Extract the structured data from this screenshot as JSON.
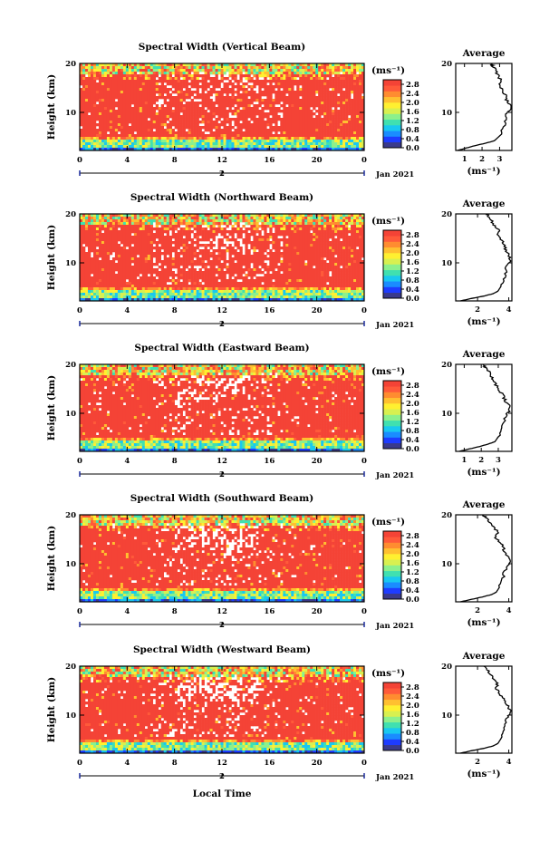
{
  "chart_data": {
    "type": "heatmap",
    "panels": [
      {
        "title": "Spectral Width (Vertical Beam)",
        "avg_xticks": [
          "1",
          "2",
          "3"
        ],
        "avg_xlim": [
          0.5,
          3.7
        ],
        "avg_profile": [
          [
            0.6,
            2
          ],
          [
            1.1,
            2.5
          ],
          [
            1.6,
            3
          ],
          [
            2.2,
            3.5
          ],
          [
            2.7,
            4
          ],
          [
            3.0,
            5
          ],
          [
            3.2,
            6.5
          ],
          [
            3.3,
            8
          ],
          [
            3.4,
            9.5
          ],
          [
            3.6,
            10.5
          ],
          [
            3.6,
            11.5
          ],
          [
            3.4,
            12.5
          ],
          [
            3.3,
            13.5
          ],
          [
            3.2,
            14.5
          ],
          [
            3.0,
            15.5
          ],
          [
            3.1,
            16.5
          ],
          [
            2.9,
            17.5
          ],
          [
            2.8,
            18.5
          ],
          [
            2.6,
            19.5
          ],
          [
            2.5,
            20
          ]
        ]
      },
      {
        "title": "Spectral Width (Northward Beam)",
        "avg_xticks": [
          "2",
          "4"
        ],
        "avg_xlim": [
          0.6,
          4.2
        ],
        "avg_profile": [
          [
            0.9,
            2
          ],
          [
            1.6,
            2.5
          ],
          [
            2.4,
            3
          ],
          [
            3.0,
            3.5
          ],
          [
            3.3,
            4
          ],
          [
            3.5,
            5
          ],
          [
            3.7,
            6.5
          ],
          [
            3.8,
            8
          ],
          [
            3.9,
            9.5
          ],
          [
            4.1,
            10.5
          ],
          [
            4.0,
            11.5
          ],
          [
            3.8,
            12.5
          ],
          [
            3.7,
            13.5
          ],
          [
            3.6,
            14.5
          ],
          [
            3.3,
            15.5
          ],
          [
            3.4,
            16.5
          ],
          [
            3.1,
            17.5
          ],
          [
            2.9,
            18.5
          ],
          [
            2.7,
            19.5
          ],
          [
            2.6,
            20
          ]
        ]
      },
      {
        "title": "Spectral Width (Eastward Beam)",
        "avg_xticks": [
          "1",
          "2",
          "3"
        ],
        "avg_xlim": [
          0.5,
          3.8
        ],
        "avg_profile": [
          [
            0.7,
            2
          ],
          [
            1.3,
            2.5
          ],
          [
            1.9,
            3
          ],
          [
            2.4,
            3.5
          ],
          [
            2.8,
            4
          ],
          [
            3.0,
            5
          ],
          [
            3.2,
            6.5
          ],
          [
            3.3,
            8
          ],
          [
            3.5,
            9.5
          ],
          [
            3.7,
            10.5
          ],
          [
            3.6,
            11.5
          ],
          [
            3.4,
            12.5
          ],
          [
            3.3,
            13.5
          ],
          [
            3.1,
            14.5
          ],
          [
            2.9,
            15.5
          ],
          [
            2.8,
            16.5
          ],
          [
            2.6,
            17.5
          ],
          [
            2.5,
            18.5
          ],
          [
            2.2,
            19.5
          ],
          [
            2.1,
            20
          ]
        ]
      },
      {
        "title": "Spectral Width (Southward Beam)",
        "avg_xticks": [
          "2",
          "4"
        ],
        "avg_xlim": [
          0.6,
          4.2
        ],
        "avg_profile": [
          [
            0.9,
            2
          ],
          [
            1.6,
            2.5
          ],
          [
            2.3,
            3
          ],
          [
            2.9,
            3.5
          ],
          [
            3.2,
            4
          ],
          [
            3.4,
            5
          ],
          [
            3.6,
            6.5
          ],
          [
            3.7,
            8
          ],
          [
            3.9,
            9.5
          ],
          [
            4.1,
            10.5
          ],
          [
            3.9,
            11.5
          ],
          [
            3.7,
            12.5
          ],
          [
            3.6,
            13.5
          ],
          [
            3.4,
            14.5
          ],
          [
            3.1,
            15.5
          ],
          [
            3.3,
            16.5
          ],
          [
            3.0,
            17.5
          ],
          [
            2.8,
            18.5
          ],
          [
            2.5,
            19.5
          ],
          [
            2.3,
            20
          ]
        ]
      },
      {
        "title": "Spectral Width (Westward Beam)",
        "avg_xticks": [
          "2",
          "4"
        ],
        "avg_xlim": [
          0.6,
          4.2
        ],
        "avg_profile": [
          [
            0.9,
            2
          ],
          [
            1.6,
            2.5
          ],
          [
            2.4,
            3
          ],
          [
            3.0,
            3.5
          ],
          [
            3.3,
            4
          ],
          [
            3.5,
            5
          ],
          [
            3.7,
            6.5
          ],
          [
            3.8,
            8
          ],
          [
            3.9,
            9.5
          ],
          [
            4.1,
            10.5
          ],
          [
            4.0,
            11.5
          ],
          [
            3.8,
            12.5
          ],
          [
            3.6,
            13.5
          ],
          [
            3.4,
            14.5
          ],
          [
            3.2,
            15.5
          ],
          [
            3.3,
            16.5
          ],
          [
            3.0,
            17.5
          ],
          [
            2.8,
            18.5
          ],
          [
            2.6,
            19.5
          ],
          [
            2.4,
            20
          ]
        ]
      }
    ],
    "x_ticks": [
      "0",
      "4",
      "8",
      "12",
      "16",
      "20",
      "0"
    ],
    "xlim": [
      0,
      24
    ],
    "day_marker": "2",
    "date_label": "Jan 2021",
    "ylabel": "Height (km)",
    "y_ticks": [
      "10",
      "20"
    ],
    "ylim": [
      2,
      20
    ],
    "colorbar_unit": "(ms⁻¹)",
    "colorbar_ticks": [
      "2.8",
      "2.4",
      "2.0",
      "1.6",
      "1.2",
      "0.8",
      "0.4",
      "0.0"
    ],
    "colorbar_range": [
      0,
      3.0
    ],
    "colorbar_colors": [
      "#3a3a8c",
      "#1e3cff",
      "#1a8cff",
      "#19c8f0",
      "#40e0b0",
      "#8cf08c",
      "#d8f050",
      "#fff030",
      "#ffc030",
      "#ff8c30",
      "#ff5a3a",
      "#f44336"
    ],
    "avg_title": "Average",
    "avg_xlabel": "(ms⁻¹)",
    "xlabel": "Local Time"
  }
}
